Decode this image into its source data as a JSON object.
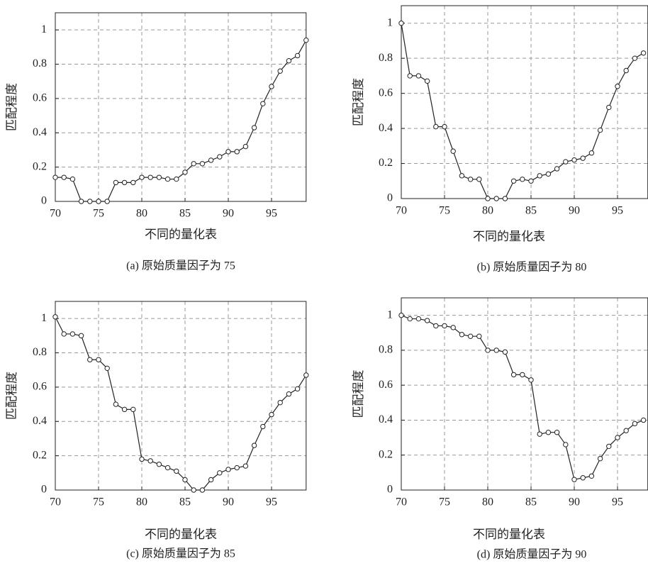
{
  "chart_data": [
    {
      "type": "line",
      "ylabel": "匹配程度",
      "xlabel": "不同的量化表",
      "caption": "(a) 原始质量因子为 75",
      "x": [
        70,
        71,
        72,
        73,
        74,
        75,
        76,
        77,
        78,
        79,
        80,
        81,
        82,
        83,
        84,
        85,
        86,
        87,
        88,
        89,
        90,
        91,
        92,
        93,
        94,
        95,
        96,
        97,
        98,
        99
      ],
      "series": [
        {
          "color": "#222222",
          "values": [
            0.14,
            0.14,
            0.13,
            0,
            0,
            0,
            0,
            0.11,
            0.11,
            0.11,
            0.14,
            0.14,
            0.14,
            0.13,
            0.13,
            0.17,
            0.22,
            0.22,
            0.24,
            0.26,
            0.29,
            0.29,
            0.32,
            0.43,
            0.57,
            0.67,
            0.76,
            0.82,
            0.85,
            0.94
          ]
        }
      ],
      "xlim": [
        70,
        99
      ],
      "ylim": [
        0,
        1.1
      ],
      "xticks": [
        70,
        75,
        80,
        85,
        90,
        95
      ],
      "yticks": [
        0,
        0.2,
        0.4,
        0.6,
        0.8,
        1
      ],
      "grid": true
    },
    {
      "type": "line",
      "ylabel": "匹配程度",
      "xlabel": "不同的量化表",
      "caption": "(b) 原始质量因子为 80",
      "x": [
        70,
        71,
        72,
        73,
        74,
        75,
        76,
        77,
        78,
        79,
        80,
        81,
        82,
        83,
        84,
        85,
        86,
        87,
        88,
        89,
        90,
        91,
        92,
        93,
        94,
        95,
        96,
        97,
        98
      ],
      "series": [
        {
          "color": "#222222",
          "values": [
            1,
            0.7,
            0.7,
            0.67,
            0.41,
            0.41,
            0.27,
            0.13,
            0.11,
            0.11,
            0,
            0,
            0,
            0.1,
            0.11,
            0.1,
            0.13,
            0.14,
            0.17,
            0.21,
            0.22,
            0.23,
            0.26,
            0.39,
            0.52,
            0.64,
            0.73,
            0.8,
            0.83
          ]
        }
      ],
      "xlim": [
        70,
        98.5
      ],
      "ylim": [
        0,
        1.1
      ],
      "xticks": [
        70,
        75,
        80,
        85,
        90,
        95
      ],
      "yticks": [
        0,
        0.2,
        0.4,
        0.6,
        0.8,
        1
      ],
      "grid": true
    },
    {
      "type": "line",
      "ylabel": "匹配程度",
      "xlabel": "不同的量化表",
      "caption": "(c) 原始质量因子为 85",
      "x": [
        70,
        71,
        72,
        73,
        74,
        75,
        76,
        77,
        78,
        79,
        80,
        81,
        82,
        83,
        84,
        85,
        86,
        87,
        88,
        89,
        90,
        91,
        92,
        93,
        94,
        95,
        96,
        97,
        98,
        99
      ],
      "series": [
        {
          "color": "#222222",
          "values": [
            1.01,
            0.91,
            0.91,
            0.9,
            0.76,
            0.76,
            0.71,
            0.5,
            0.47,
            0.47,
            0.18,
            0.17,
            0.15,
            0.13,
            0.11,
            0.06,
            0,
            0,
            0.06,
            0.1,
            0.12,
            0.13,
            0.14,
            0.26,
            0.37,
            0.44,
            0.51,
            0.56,
            0.59,
            0.67
          ]
        }
      ],
      "xlim": [
        70,
        99
      ],
      "ylim": [
        0,
        1.1
      ],
      "xticks": [
        70,
        75,
        80,
        85,
        90,
        95
      ],
      "yticks": [
        0,
        0.2,
        0.4,
        0.6,
        0.8,
        1
      ],
      "grid": true
    },
    {
      "type": "line",
      "ylabel": "匹配程度",
      "xlabel": "不同的量化表",
      "caption": "(d) 原始质量因子为 90",
      "x": [
        70,
        71,
        72,
        73,
        74,
        75,
        76,
        77,
        78,
        79,
        80,
        81,
        82,
        83,
        84,
        85,
        86,
        87,
        88,
        89,
        90,
        91,
        92,
        93,
        94,
        95,
        96,
        97,
        98
      ],
      "series": [
        {
          "color": "#222222",
          "values": [
            1,
            0.98,
            0.98,
            0.97,
            0.94,
            0.94,
            0.93,
            0.89,
            0.88,
            0.88,
            0.8,
            0.8,
            0.79,
            0.66,
            0.66,
            0.63,
            0.32,
            0.33,
            0.33,
            0.26,
            0.06,
            0.07,
            0.08,
            0.18,
            0.25,
            0.3,
            0.34,
            0.38,
            0.4
          ]
        }
      ],
      "xlim": [
        70,
        98.5
      ],
      "ylim": [
        0,
        1.1
      ],
      "xticks": [
        70,
        75,
        80,
        85,
        90,
        95
      ],
      "yticks": [
        0,
        0.2,
        0.4,
        0.6,
        0.8,
        1
      ],
      "grid": true
    }
  ]
}
